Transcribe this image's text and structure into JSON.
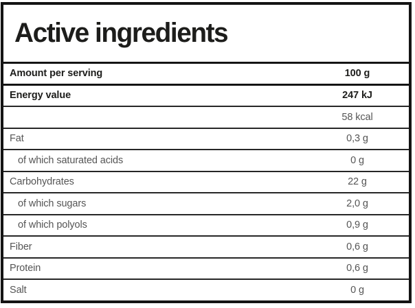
{
  "table": {
    "title": "Active ingredients",
    "columns": {
      "label_header": "Amount per serving",
      "value_header": "100 g"
    },
    "rows": [
      {
        "label": "Amount per serving",
        "value": "100 g",
        "bold": true,
        "indent": false,
        "major_separator_after": true
      },
      {
        "label": "Energy value",
        "value": "247 kJ",
        "bold": true,
        "indent": false,
        "major_separator_after": false
      },
      {
        "label": "",
        "value": "58 kcal",
        "bold": false,
        "indent": false,
        "major_separator_after": false
      },
      {
        "label": "Fat",
        "value": "0,3 g",
        "bold": false,
        "indent": false,
        "major_separator_after": false
      },
      {
        "label": "of which saturated acids",
        "value": "0 g",
        "bold": false,
        "indent": true,
        "major_separator_after": false
      },
      {
        "label": "Carbohydrates",
        "value": "22 g",
        "bold": false,
        "indent": false,
        "major_separator_after": false
      },
      {
        "label": "of which sugars",
        "value": "2,0 g",
        "bold": false,
        "indent": true,
        "major_separator_after": false
      },
      {
        "label": "of which polyols",
        "value": "0,9 g",
        "bold": false,
        "indent": true,
        "major_separator_after": false
      },
      {
        "label": "Fiber",
        "value": "0,6 g",
        "bold": false,
        "indent": false,
        "major_separator_after": false
      },
      {
        "label": "Protein",
        "value": "0,6 g",
        "bold": false,
        "indent": false,
        "major_separator_after": false
      },
      {
        "label": "Salt",
        "value": "0 g",
        "bold": false,
        "indent": false,
        "major_separator_after": false
      }
    ],
    "colors": {
      "border": "#141414",
      "row_separator": "#262626",
      "title_text": "#1d1d1b",
      "bold_text": "#1d1d1b",
      "regular_text": "#555555",
      "background": "#ffffff"
    }
  }
}
